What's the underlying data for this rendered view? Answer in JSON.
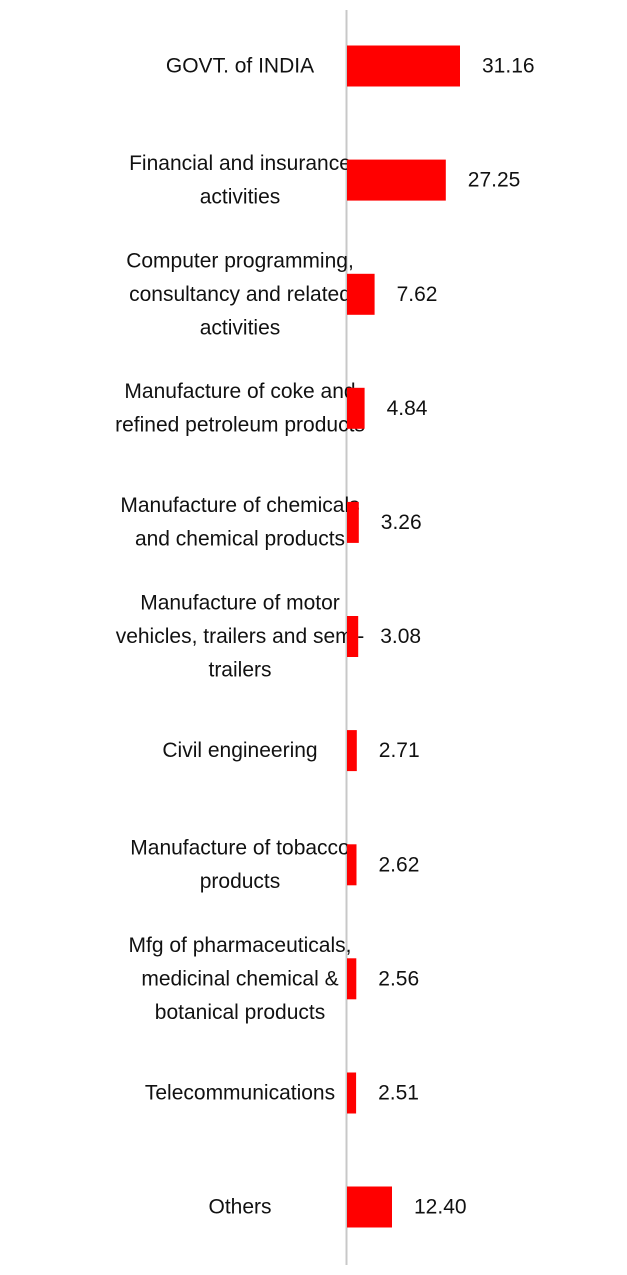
{
  "chart_data": {
    "type": "bar",
    "orientation": "horizontal",
    "categories": [
      [
        "GOVT. of INDIA"
      ],
      [
        "Financial and insurance",
        "activities"
      ],
      [
        "Computer programming,",
        "consultancy and related",
        "activities"
      ],
      [
        "Manufacture of coke and",
        "refined petroleum products"
      ],
      [
        "Manufacture of chemicals",
        "and chemical products"
      ],
      [
        "Manufacture of motor",
        "vehicles, trailers and semi-",
        "trailers"
      ],
      [
        "Civil engineering"
      ],
      [
        "Manufacture of tobacco",
        "products"
      ],
      [
        "Mfg of pharmaceuticals,",
        "medicinal chemical &",
        "botanical products"
      ],
      [
        "Telecommunications"
      ],
      [
        "Others"
      ]
    ],
    "values": [
      31.16,
      27.25,
      7.62,
      4.84,
      3.26,
      3.08,
      2.71,
      2.62,
      2.56,
      2.51,
      12.4
    ],
    "value_labels": [
      "31.16",
      "27.25",
      "7.62",
      "4.84",
      "3.26",
      "3.08",
      "2.71",
      "2.62",
      "2.56",
      "2.51",
      "12.40"
    ],
    "title": "",
    "xlabel": "",
    "ylabel": "",
    "xlim": [
      0,
      31.16
    ],
    "grid": false,
    "legend": "none",
    "bar_color": "#ff0000",
    "axis_color": "#c8c8c8"
  }
}
